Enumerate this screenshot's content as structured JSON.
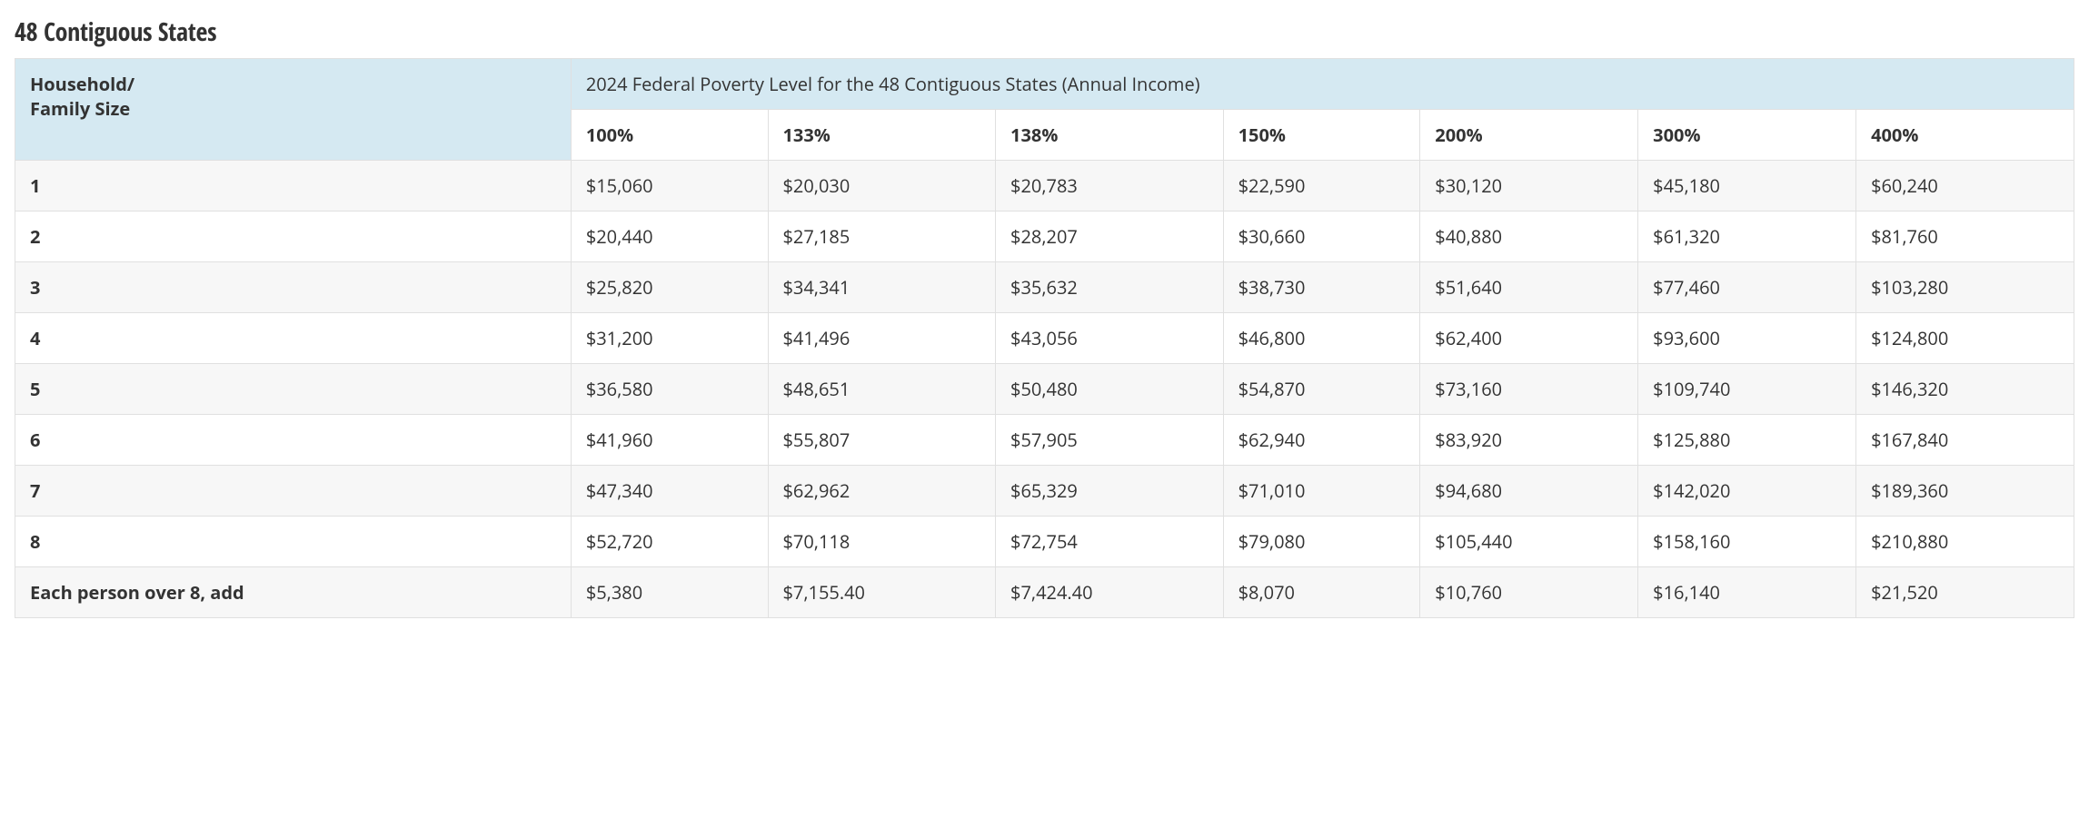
{
  "title": "48 Contiguous States",
  "table": {
    "header_left_line1": "Household/",
    "header_left_line2": "Family Size",
    "header_banner": "2024 Federal Poverty Level for the 48 Contiguous States (Annual Income)",
    "percent_columns": [
      "100%",
      "133%",
      "138%",
      "150%",
      "200%",
      "300%",
      "400%"
    ],
    "row_labels": [
      "1",
      "2",
      "3",
      "4",
      "5",
      "6",
      "7",
      "8",
      "Each person over 8, add"
    ],
    "rows": [
      [
        "$15,060",
        "$20,030",
        "$20,783",
        "$22,590",
        "$30,120",
        "$45,180",
        "$60,240"
      ],
      [
        "$20,440",
        "$27,185",
        "$28,207",
        "$30,660",
        "$40,880",
        "$61,320",
        "$81,760"
      ],
      [
        "$25,820",
        "$34,341",
        "$35,632",
        "$38,730",
        "$51,640",
        "$77,460",
        "$103,280"
      ],
      [
        "$31,200",
        "$41,496",
        "$43,056",
        "$46,800",
        "$62,400",
        "$93,600",
        "$124,800"
      ],
      [
        "$36,580",
        "$48,651",
        "$50,480",
        "$54,870",
        "$73,160",
        "$109,740",
        "$146,320"
      ],
      [
        "$41,960",
        "$55,807",
        "$57,905",
        "$62,940",
        "$83,920",
        "$125,880",
        "$167,840"
      ],
      [
        "$47,340",
        "$62,962",
        "$65,329",
        "$71,010",
        "$94,680",
        "$142,020",
        "$189,360"
      ],
      [
        "$52,720",
        "$70,118",
        "$72,754",
        "$79,080",
        "$105,440",
        "$158,160",
        "$210,880"
      ],
      [
        "$5,380",
        "$7,155.40",
        "$7,424.40",
        "$8,070",
        "$10,760",
        "$16,140",
        "$21,520"
      ]
    ],
    "colors": {
      "banner_bg": "#d5e9f2",
      "border": "#e0e0e0",
      "row_alt_bg": "#f7f7f7",
      "row_bg": "#ffffff",
      "text": "#333333"
    },
    "font": {
      "title_size_pt": 21,
      "cell_size_pt": 15,
      "header_weight": 700,
      "cell_weight": 400
    },
    "first_col_width_pct": 27
  }
}
